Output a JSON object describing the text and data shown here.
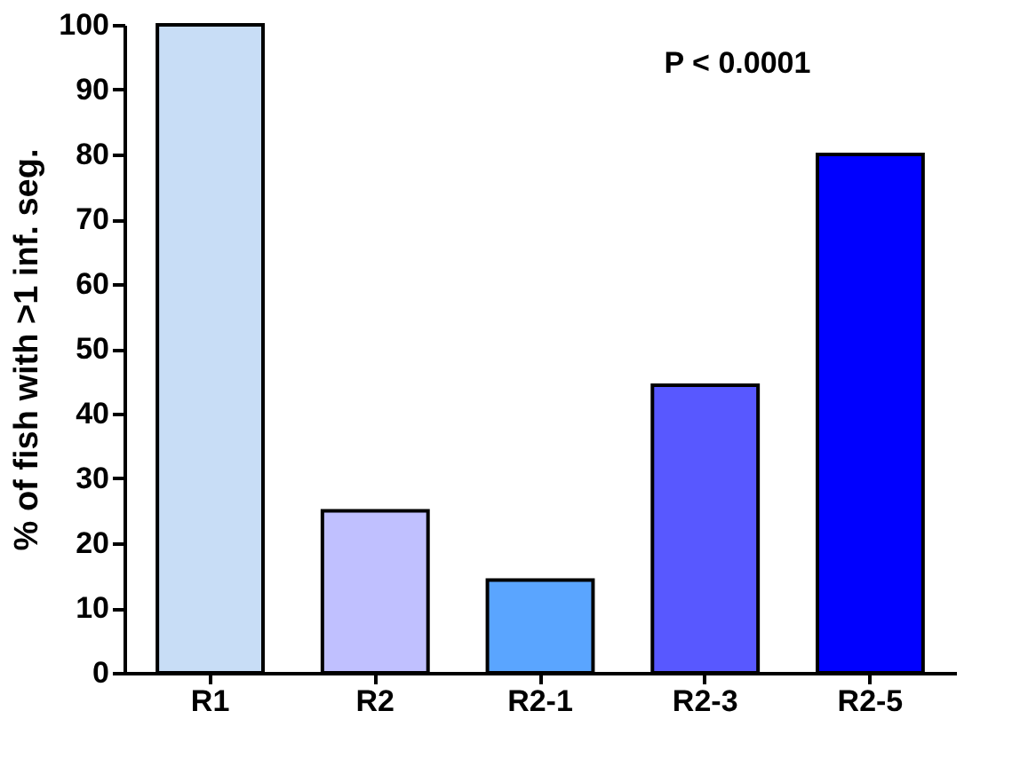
{
  "chart_data": {
    "type": "bar",
    "categories": [
      "R1",
      "R2",
      "R2-1",
      "R2-3",
      "R2-5"
    ],
    "values": [
      100,
      25,
      14.3,
      44.4,
      80
    ],
    "colors": [
      "#c8ddf6",
      "#c0c0ff",
      "#5aa5ff",
      "#5858ff",
      "#0000ff"
    ],
    "ylabel": "% of fish with >1 inf. seg.",
    "ylim": [
      0,
      100
    ],
    "yticks": [
      0,
      10,
      20,
      30,
      40,
      50,
      60,
      70,
      80,
      90,
      100
    ],
    "annotations": [
      "P < 0.0001"
    ],
    "grid": false
  }
}
